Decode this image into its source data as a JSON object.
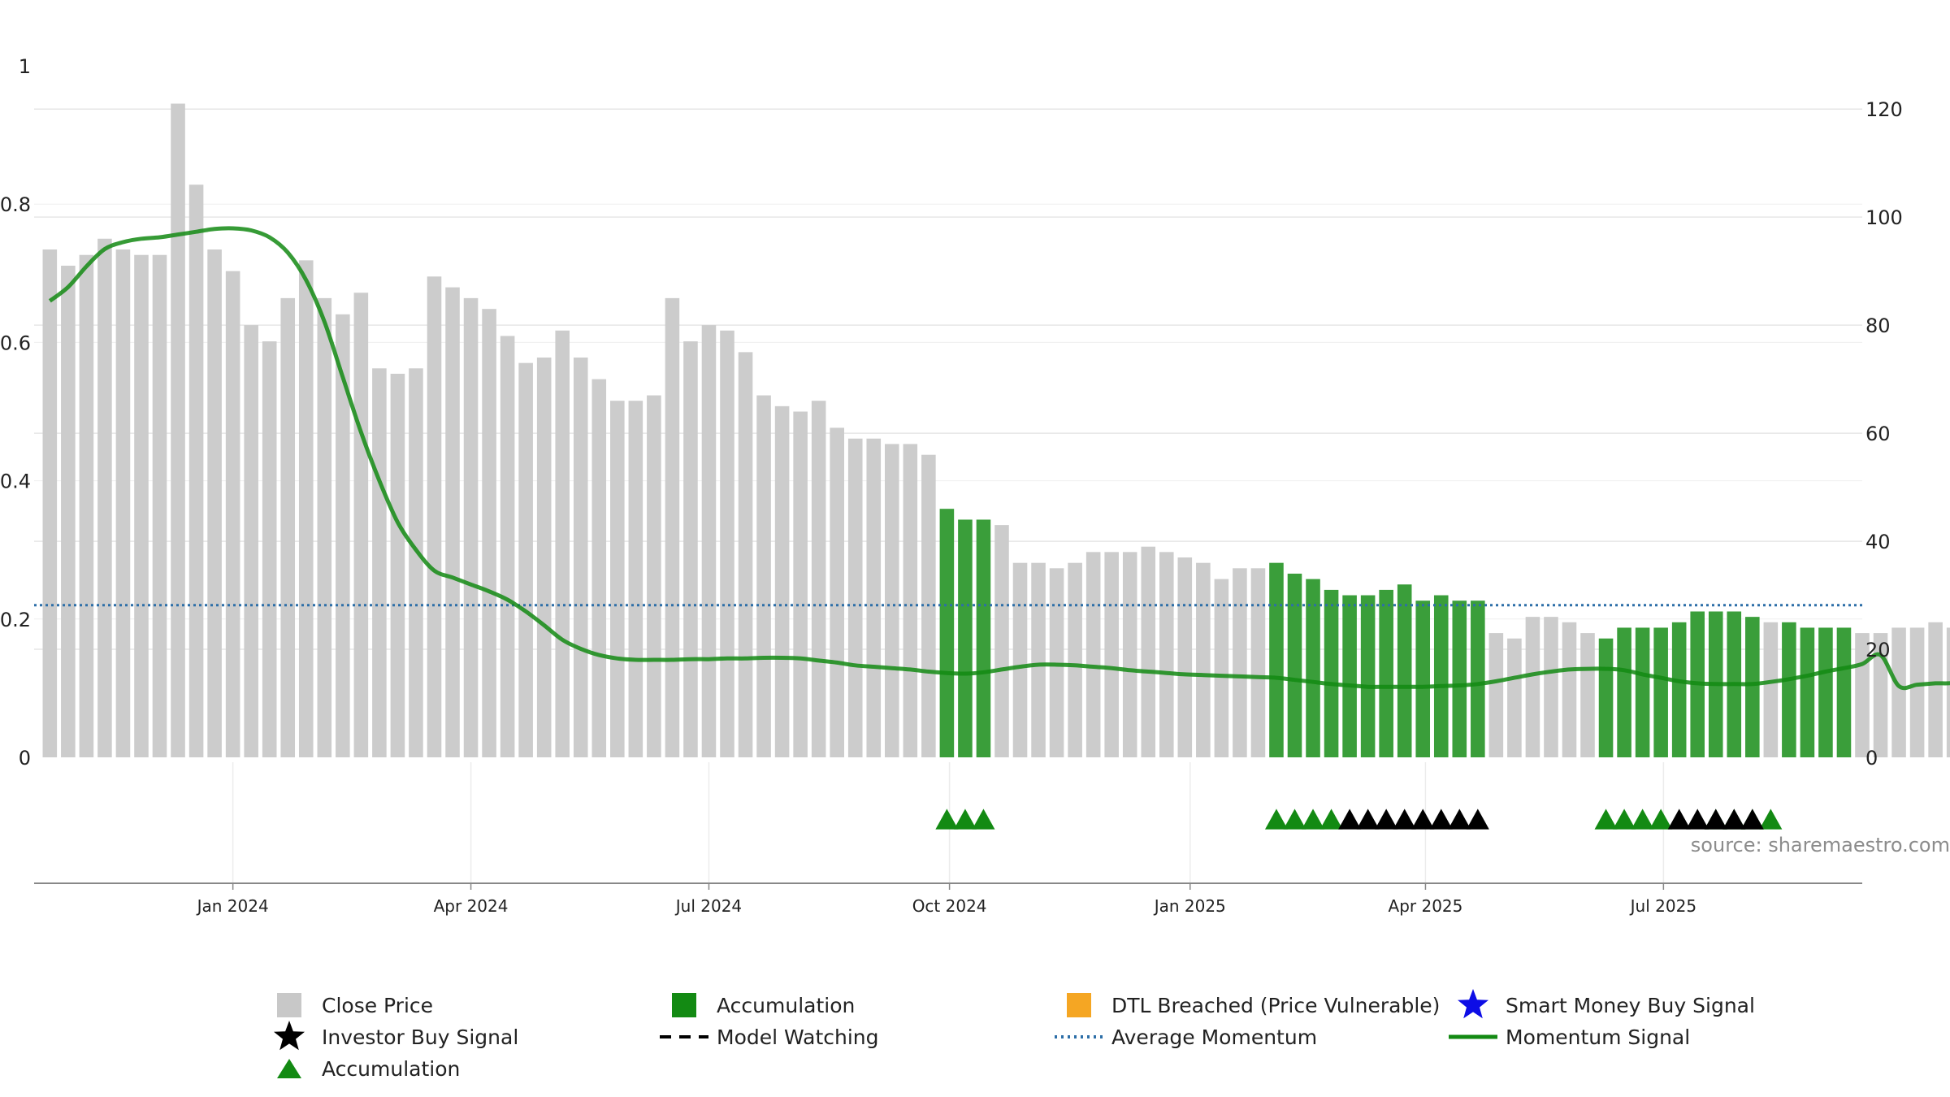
{
  "chart_data": {
    "type": "bar",
    "source_note": "source: sharemaestro.com",
    "left_axis": {
      "ylim": [
        0,
        1
      ],
      "ticks": [
        "0",
        "0.2",
        "0.4",
        "0.6",
        "0.8",
        "1"
      ]
    },
    "right_axis": {
      "ylim": [
        0,
        128
      ],
      "ticks": [
        "0",
        "20",
        "40",
        "60",
        "80",
        "100",
        "120"
      ]
    },
    "x_axis": {
      "range": [
        "2023-10-17",
        "2025-09-15"
      ],
      "ticks": [
        {
          "date": "2024-01-01",
          "label": "Jan 2024"
        },
        {
          "date": "2024-04-01",
          "label": "Apr 2024"
        },
        {
          "date": "2024-07-01",
          "label": "Jul 2024"
        },
        {
          "date": "2024-10-01",
          "label": "Oct 2024"
        },
        {
          "date": "2025-01-01",
          "label": "Jan 2025"
        },
        {
          "date": "2025-04-01",
          "label": "Apr 2025"
        },
        {
          "date": "2025-07-01",
          "label": "Jul 2025"
        }
      ]
    },
    "price_bars": {
      "first_week": "2023-10-23",
      "values": [
        94,
        91,
        93,
        96,
        94,
        93,
        93,
        121,
        106,
        94,
        90,
        80,
        77,
        85,
        92,
        85,
        82,
        86,
        72,
        71,
        72,
        89,
        87,
        85,
        83,
        78,
        73,
        74,
        79,
        74,
        70,
        66,
        66,
        67,
        85,
        77,
        80,
        79,
        75,
        67,
        65,
        64,
        66,
        61,
        59,
        59,
        58,
        58,
        56,
        46,
        44,
        44,
        43,
        36,
        36,
        35,
        36,
        38,
        38,
        38,
        39,
        38,
        37,
        36,
        33,
        35,
        35,
        36,
        34,
        33,
        31,
        30,
        30,
        31,
        32,
        29,
        30,
        29,
        29,
        23,
        22,
        26,
        26,
        25,
        23,
        22,
        24,
        24,
        24,
        25,
        27,
        27,
        27,
        26,
        25,
        25,
        24,
        24,
        24,
        23,
        23,
        24,
        24,
        25,
        24
      ]
    },
    "accumulation_ranges": [
      [
        49,
        51
      ],
      [
        67,
        78
      ],
      [
        85,
        93
      ],
      [
        95,
        98
      ]
    ],
    "momentum_signal": [
      0.66,
      0.68,
      0.71,
      0.735,
      0.745,
      0.75,
      0.752,
      0.756,
      0.76,
      0.764,
      0.765,
      0.762,
      0.752,
      0.73,
      0.69,
      0.63,
      0.55,
      0.47,
      0.4,
      0.34,
      0.3,
      0.27,
      0.26,
      0.25,
      0.24,
      0.228,
      0.211,
      0.191,
      0.17,
      0.157,
      0.148,
      0.143,
      0.141,
      0.141,
      0.141,
      0.142,
      0.142,
      0.143,
      0.143,
      0.144,
      0.144,
      0.143,
      0.14,
      0.137,
      0.133,
      0.131,
      0.129,
      0.127,
      0.124,
      0.122,
      0.121,
      0.123,
      0.127,
      0.131,
      0.134,
      0.134,
      0.133,
      0.131,
      0.129,
      0.126,
      0.124,
      0.122,
      0.12,
      0.119,
      0.118,
      0.117,
      0.116,
      0.115,
      0.112,
      0.109,
      0.106,
      0.104,
      0.102,
      0.102,
      0.102,
      0.102,
      0.103,
      0.104,
      0.106,
      0.11,
      0.115,
      0.12,
      0.124,
      0.127,
      0.128,
      0.128,
      0.126,
      0.12,
      0.115,
      0.11,
      0.107,
      0.106,
      0.106,
      0.106,
      0.109,
      0.113,
      0.118,
      0.124,
      0.129,
      0.135,
      0.148,
      0.103,
      0.105,
      0.107,
      0.108,
      0.12,
      0.124,
      0.125
    ],
    "average_momentum": 0.22,
    "markers": {
      "green_triangles": [
        49,
        50,
        51,
        67,
        68,
        69,
        70,
        85,
        86,
        87,
        88,
        91,
        92,
        93,
        94
      ],
      "black_triangles": [
        71,
        72,
        73,
        74,
        75,
        76,
        77,
        78,
        89,
        90,
        91,
        92,
        93
      ]
    },
    "legend": [
      {
        "label": "Close Price",
        "symbol": "square",
        "color": "#c8c8c8"
      },
      {
        "label": "Accumulation",
        "symbol": "square",
        "color": "#138a13"
      },
      {
        "label": "DTL Breached (Price Vulnerable)",
        "symbol": "square",
        "color": "#f5a623"
      },
      {
        "label": "Smart Money Buy Signal",
        "symbol": "star",
        "color": "#0d0de6"
      },
      {
        "label": "Investor Buy Signal",
        "symbol": "star",
        "color": "#000000"
      },
      {
        "label": "Model Watching",
        "symbol": "dash",
        "color": "#000000"
      },
      {
        "label": "Average Momentum",
        "symbol": "dot",
        "color": "#2d6fa8"
      },
      {
        "label": "Momentum Signal",
        "symbol": "line",
        "color": "#138a13"
      },
      {
        "label": "Accumulation",
        "symbol": "triangle",
        "color": "#138a13"
      }
    ]
  }
}
